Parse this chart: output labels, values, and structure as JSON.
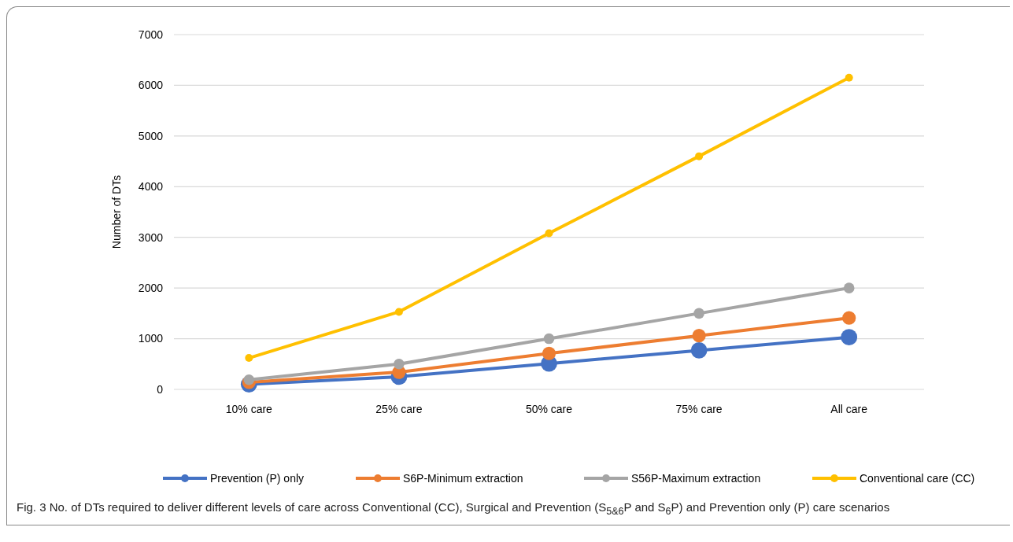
{
  "chart_data": {
    "type": "line",
    "ylabel": "Number of DTs",
    "categories": [
      "10% care",
      "25% care",
      "50% care",
      "75% care",
      "All care"
    ],
    "series": [
      {
        "name": "Prevention (P) only",
        "color": "#4472c4",
        "values": [
          100,
          250,
          510,
          770,
          1030
        ]
      },
      {
        "name": "S6P-Minimum extraction",
        "color": "#ed7d31",
        "values": [
          140,
          340,
          710,
          1060,
          1410
        ]
      },
      {
        "name": "S56P-Maximum extraction",
        "color": "#a5a5a5",
        "values": [
          190,
          500,
          1000,
          1500,
          2000
        ]
      },
      {
        "name": "Conventional care (CC)",
        "color": "#ffc000",
        "values": [
          620,
          1530,
          3080,
          4600,
          6150
        ]
      }
    ],
    "ylim": [
      0,
      7000
    ],
    "yticks": [
      0,
      1000,
      2000,
      3000,
      4000,
      5000,
      6000,
      7000
    ],
    "grid": "y",
    "legend": "bottom",
    "marker": "circle",
    "line_style": "solid",
    "annotations": [
      "Fig. 3  No. of DTs required to deliver different levels of care across Conventional (CC), Surgical and Prevention (S$_{5&6}$P and S$_{6}$P) and Prevention only (P) care scenarios"
    ]
  }
}
